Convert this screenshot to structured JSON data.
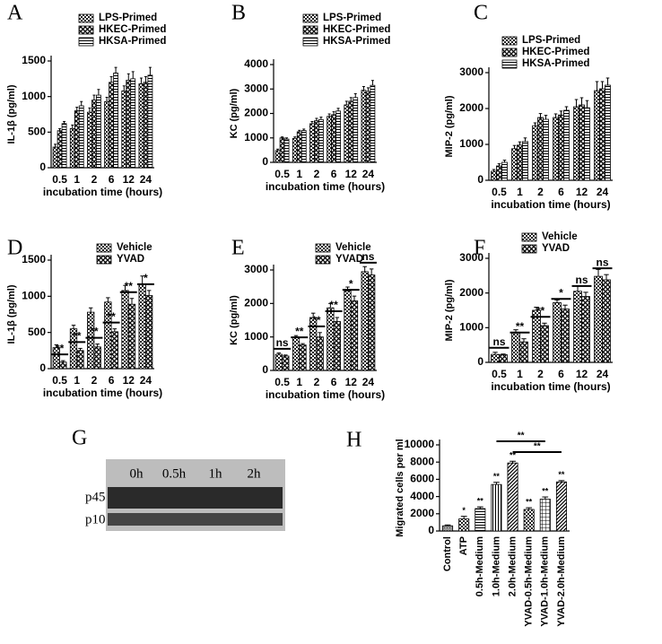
{
  "chart_data": [
    {
      "type": "bar",
      "label": "A",
      "ylabel": "IL-1β (pg/ml)",
      "xlabel": "incubation time (hours)",
      "categories": [
        "0.5",
        "1",
        "2",
        "6",
        "12",
        "24"
      ],
      "ylim": [
        0,
        1500
      ],
      "yticks": [
        0,
        500,
        1000,
        1500
      ],
      "legend": true,
      "series": [
        {
          "name": "LPS-Primed",
          "pattern": "checker",
          "values": [
            290,
            550,
            780,
            930,
            1080,
            1180
          ],
          "errors": [
            40,
            50,
            60,
            60,
            70,
            80
          ]
        },
        {
          "name": "HKEC-Primed",
          "pattern": "cross",
          "values": [
            520,
            800,
            950,
            1200,
            1230,
            1200
          ],
          "errors": [
            30,
            50,
            70,
            80,
            90,
            80
          ]
        },
        {
          "name": "HKSA-Primed",
          "pattern": "hstripe",
          "values": [
            620,
            870,
            1020,
            1330,
            1250,
            1300
          ],
          "errors": [
            30,
            60,
            80,
            80,
            100,
            110
          ]
        }
      ]
    },
    {
      "type": "bar",
      "label": "B",
      "ylabel": "KC (pg/ml)",
      "xlabel": "incubation time (hours)",
      "categories": [
        "0.5",
        "1",
        "2",
        "6",
        "12",
        "24"
      ],
      "ylim": [
        0,
        4000
      ],
      "yticks": [
        0,
        1000,
        2000,
        3000,
        4000
      ],
      "legend": true,
      "series": [
        {
          "name": "LPS-Primed",
          "pattern": "checker",
          "values": [
            480,
            980,
            1580,
            1880,
            2350,
            2950
          ],
          "errors": [
            60,
            60,
            90,
            100,
            150,
            150
          ]
        },
        {
          "name": "HKEC-Primed",
          "pattern": "cross",
          "values": [
            1000,
            1250,
            1700,
            1950,
            2500,
            2900
          ],
          "errors": [
            40,
            60,
            100,
            120,
            150,
            150
          ]
        },
        {
          "name": "HKSA-Primed",
          "pattern": "hstripe",
          "values": [
            950,
            1300,
            1750,
            2100,
            2650,
            3150
          ],
          "errors": [
            50,
            60,
            100,
            110,
            160,
            200
          ]
        }
      ]
    },
    {
      "type": "bar",
      "label": "C",
      "ylabel": "MIP-2 (pg/ml)",
      "xlabel": "incubation time (hours)",
      "categories": [
        "0.5",
        "1",
        "2",
        "6",
        "12",
        "24"
      ],
      "ylim": [
        0,
        3000
      ],
      "yticks": [
        0,
        1000,
        2000,
        3000
      ],
      "legend": true,
      "series": [
        {
          "name": "LPS-Primed",
          "pattern": "checker",
          "values": [
            250,
            880,
            1520,
            1750,
            2050,
            2500
          ],
          "errors": [
            50,
            90,
            80,
            100,
            200,
            250
          ]
        },
        {
          "name": "HKEC-Primed",
          "pattern": "cross",
          "values": [
            400,
            980,
            1750,
            1820,
            2100,
            2550
          ],
          "errors": [
            60,
            90,
            110,
            110,
            200,
            200
          ]
        },
        {
          "name": "HKSA-Primed",
          "pattern": "hstripe",
          "values": [
            500,
            1080,
            1700,
            1950,
            2020,
            2650
          ],
          "errors": [
            60,
            100,
            110,
            100,
            200,
            200
          ]
        }
      ]
    },
    {
      "type": "bar",
      "label": "D",
      "ylabel": "IL-1β (pg/ml)",
      "xlabel": "incubation time (hours)",
      "categories": [
        "0.5",
        "1",
        "2",
        "6",
        "12",
        "24"
      ],
      "ylim": [
        0,
        1500
      ],
      "yticks": [
        0,
        500,
        1000,
        1500
      ],
      "legend": true,
      "series": [
        {
          "name": "Vehicle",
          "pattern": "checker",
          "values": [
            290,
            550,
            780,
            920,
            1080,
            1170
          ],
          "errors": [
            40,
            50,
            60,
            60,
            70,
            110
          ]
        },
        {
          "name": "YVAD",
          "pattern": "cross",
          "values": [
            90,
            250,
            300,
            510,
            890,
            1010
          ],
          "errors": [
            20,
            30,
            40,
            40,
            80,
            70
          ]
        }
      ],
      "annotations": [
        "**",
        "**",
        "**",
        "**",
        "**",
        "*"
      ]
    },
    {
      "type": "bar",
      "label": "E",
      "ylabel": "KC (pg/ml)",
      "xlabel": "incubation time (hours)",
      "categories": [
        "0.5",
        "1",
        "2",
        "6",
        "12",
        "24"
      ],
      "ylim": [
        0,
        3000
      ],
      "yticks": [
        0,
        1000,
        2000,
        3000
      ],
      "legend": true,
      "series": [
        {
          "name": "Vehicle",
          "pattern": "checker",
          "values": [
            480,
            980,
            1580,
            1870,
            2370,
            2950
          ],
          "errors": [
            40,
            60,
            130,
            130,
            120,
            150
          ]
        },
        {
          "name": "YVAD",
          "pattern": "cross",
          "values": [
            430,
            760,
            1000,
            1460,
            2080,
            2850
          ],
          "errors": [
            30,
            40,
            130,
            120,
            140,
            180
          ]
        }
      ],
      "annotations": [
        "ns",
        "**",
        "**",
        "**",
        "*",
        "ns"
      ]
    },
    {
      "type": "bar",
      "label": "F",
      "ylabel": "MIP-2 (pg/ml)",
      "xlabel": "incubation time (hours)",
      "categories": [
        "0.5",
        "1",
        "2",
        "6",
        "12",
        "24"
      ],
      "ylim": [
        0,
        3000
      ],
      "yticks": [
        0,
        1000,
        2000,
        3000
      ],
      "legend": true,
      "series": [
        {
          "name": "Vehicle",
          "pattern": "checker",
          "values": [
            230,
            870,
            1500,
            1720,
            2050,
            2480
          ],
          "errors": [
            60,
            70,
            90,
            80,
            150,
            200
          ]
        },
        {
          "name": "YVAD",
          "pattern": "cross",
          "values": [
            220,
            590,
            1060,
            1540,
            1900,
            2380
          ],
          "errors": [
            20,
            90,
            70,
            110,
            120,
            150
          ]
        }
      ],
      "annotations": [
        "ns",
        "**",
        "**",
        "*",
        "ns",
        "ns"
      ]
    },
    {
      "type": "bar",
      "label": "H",
      "ylabel": "Migrated cells per ml",
      "categories": [
        "Control",
        "ATP",
        "0.5h-Medium",
        "1.0h-Medium",
        "2.0h-Medium",
        "YVAD-0.5h-Medium",
        "YVAD-1.0h-Medium",
        "YVAD-2.0h-Medium"
      ],
      "ylim": [
        0,
        10000
      ],
      "yticks": [
        0,
        2000,
        4000,
        6000,
        8000,
        10000
      ],
      "values": [
        600,
        1400,
        2600,
        5400,
        7900,
        2500,
        3700,
        5700
      ],
      "errors": [
        100,
        300,
        200,
        250,
        200,
        200,
        250,
        150
      ],
      "value_labels": [
        null,
        "*",
        "**",
        "**",
        "**",
        "**",
        "**",
        "**"
      ],
      "patterns": [
        "grey",
        "checker",
        "hstripe",
        "vstripe",
        "diag",
        "checker",
        "grid",
        "diag"
      ],
      "brackets": [
        {
          "from": 3,
          "to": 6,
          "label": "**"
        },
        {
          "from": 4,
          "to": 7,
          "label": "**"
        }
      ]
    }
  ],
  "blot": {
    "label": "G",
    "lanes": [
      "0h",
      "0.5h",
      "1h",
      "2h"
    ],
    "bands": [
      "p45",
      "p10"
    ]
  }
}
